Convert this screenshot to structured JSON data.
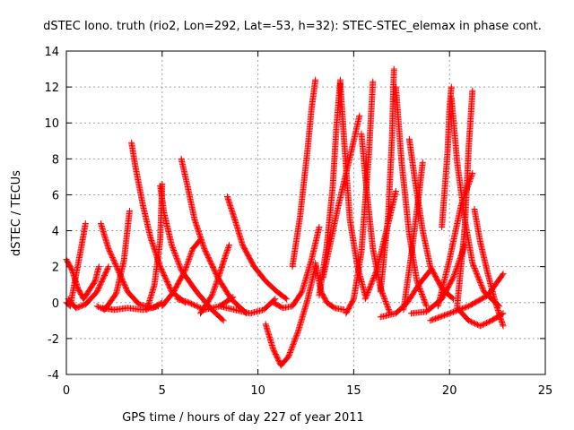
{
  "chart_data": {
    "type": "scatter",
    "title": "dSTEC Iono. truth (rio2, Lon=292, Lat=-53, h=32): STEC-STEC_elemax in phase cont.",
    "xlabel": "GPS time / hours of day 227 of year 2011",
    "ylabel": "dSTEC  / TECUs",
    "xlim": [
      0,
      25
    ],
    "ylim": [
      -4,
      14
    ],
    "x_ticks": [
      0,
      5,
      10,
      15,
      20,
      25
    ],
    "y_ticks": [
      -4,
      -2,
      0,
      2,
      4,
      6,
      8,
      10,
      12,
      14
    ],
    "grid": true,
    "legend": "none",
    "marker": "plus",
    "color": "#ff0000",
    "series": [
      {
        "x": [
          0.0,
          0.3,
          0.6,
          0.9,
          1.5,
          1.7
        ],
        "y": [
          2.4,
          1.8,
          0.8,
          0.2,
          1.2,
          2.0
        ]
      },
      {
        "x": [
          0.0,
          0.2,
          0.5,
          0.8,
          1.0
        ],
        "y": [
          0.0,
          -0.2,
          1.5,
          3.2,
          4.4
        ]
      },
      {
        "x": [
          0.1,
          0.5,
          1.0,
          1.6,
          2.2
        ],
        "y": [
          0.2,
          -0.3,
          -0.1,
          0.6,
          2.0
        ]
      },
      {
        "x": [
          1.8,
          2.2,
          2.7,
          3.2,
          3.8,
          4.5,
          5.0
        ],
        "y": [
          4.4,
          3.0,
          1.8,
          0.6,
          -0.1,
          -0.3,
          0.0
        ]
      },
      {
        "x": [
          1.6,
          2.0,
          2.6,
          3.0,
          3.3
        ],
        "y": [
          -0.2,
          -0.4,
          0.5,
          2.3,
          5.1
        ]
      },
      {
        "x": [
          3.4,
          3.6,
          4.0,
          4.4,
          4.9,
          5.5,
          6.2
        ],
        "y": [
          8.9,
          7.6,
          5.4,
          3.6,
          2.0,
          0.6,
          0.0
        ]
      },
      {
        "x": [
          1.9,
          2.5,
          3.2,
          4.0,
          4.8
        ],
        "y": [
          -0.3,
          -0.4,
          -0.3,
          -0.4,
          -0.2
        ]
      },
      {
        "x": [
          4.2,
          4.6,
          4.9,
          5.0
        ],
        "y": [
          -0.4,
          1.0,
          3.5,
          6.6
        ]
      },
      {
        "x": [
          4.9,
          5.1,
          5.5,
          6.0,
          6.8,
          7.6,
          8.2
        ],
        "y": [
          6.5,
          5.0,
          3.2,
          1.8,
          0.6,
          -0.4,
          -1.0
        ]
      },
      {
        "x": [
          5.0,
          5.6,
          6.2,
          6.6,
          7.0
        ],
        "y": [
          -0.2,
          0.6,
          1.8,
          3.0,
          3.5
        ]
      },
      {
        "x": [
          6.0,
          6.3,
          6.7,
          7.2,
          7.9,
          8.6,
          9.4
        ],
        "y": [
          8.0,
          6.6,
          4.6,
          3.0,
          1.4,
          0.2,
          -0.6
        ]
      },
      {
        "x": [
          5.8,
          6.4,
          7.2,
          8.0,
          8.7
        ],
        "y": [
          0.2,
          0.0,
          -0.4,
          -0.2,
          0.3
        ]
      },
      {
        "x": [
          7.0,
          7.6,
          8.0,
          8.3,
          8.5
        ],
        "y": [
          -0.6,
          0.4,
          1.6,
          2.6,
          3.2
        ]
      },
      {
        "x": [
          8.4,
          8.8,
          9.2,
          9.8,
          10.4,
          11.0,
          11.5
        ],
        "y": [
          5.9,
          4.6,
          3.2,
          2.0,
          1.2,
          0.6,
          0.2
        ]
      },
      {
        "x": [
          8.0,
          8.8,
          9.6,
          10.3,
          10.9
        ],
        "y": [
          -0.2,
          -0.4,
          -0.6,
          -0.4,
          0.2
        ]
      },
      {
        "x": [
          10.4,
          10.8,
          11.2,
          11.6,
          12.1,
          12.6,
          13.0
        ],
        "y": [
          -1.2,
          -2.6,
          -3.5,
          -3.0,
          -1.6,
          0.2,
          2.0
        ]
      },
      {
        "x": [
          10.8,
          11.3,
          11.8,
          12.3,
          12.8,
          13.2
        ],
        "y": [
          0.0,
          -0.3,
          -0.2,
          0.6,
          2.4,
          4.2
        ]
      },
      {
        "x": [
          11.8,
          12.2,
          12.6,
          12.8,
          13.0
        ],
        "y": [
          2.0,
          4.8,
          8.6,
          10.8,
          12.4
        ]
      },
      {
        "x": [
          13.0,
          13.3,
          13.6,
          14.0,
          14.5
        ],
        "y": [
          2.2,
          0.6,
          0.0,
          -0.3,
          -0.4
        ]
      },
      {
        "x": [
          13.2,
          13.6,
          13.9,
          14.1,
          14.3
        ],
        "y": [
          0.4,
          3.2,
          6.4,
          9.8,
          12.4
        ]
      },
      {
        "x": [
          14.3,
          14.5,
          14.8,
          15.2,
          15.6
        ],
        "y": [
          12.2,
          9.0,
          4.6,
          2.0,
          0.4
        ]
      },
      {
        "x": [
          13.4,
          13.8,
          14.2,
          14.6,
          15.0,
          15.3
        ],
        "y": [
          1.4,
          3.4,
          5.4,
          7.2,
          9.0,
          10.4
        ]
      },
      {
        "x": [
          14.6,
          15.0,
          15.4,
          15.6,
          15.8,
          16.0
        ],
        "y": [
          -0.6,
          0.2,
          2.8,
          5.6,
          8.4,
          12.3
        ]
      },
      {
        "x": [
          15.4,
          15.7,
          16.0,
          16.4,
          16.9
        ],
        "y": [
          9.4,
          6.0,
          3.0,
          0.8,
          -0.6
        ]
      },
      {
        "x": [
          15.6,
          16.2,
          16.8,
          17.2
        ],
        "y": [
          0.2,
          1.8,
          4.4,
          6.2
        ]
      },
      {
        "x": [
          16.4,
          16.8,
          17.0,
          17.1
        ],
        "y": [
          0.6,
          4.8,
          9.2,
          13.0
        ]
      },
      {
        "x": [
          17.2,
          17.5,
          17.9,
          18.3,
          18.8
        ],
        "y": [
          12.0,
          7.8,
          3.8,
          1.2,
          -0.2
        ]
      },
      {
        "x": [
          16.4,
          17.2,
          17.8,
          18.4,
          19.0
        ],
        "y": [
          -0.8,
          -0.6,
          0.0,
          1.0,
          1.8
        ]
      },
      {
        "x": [
          17.9,
          18.2,
          18.6,
          19.0,
          19.6,
          20.2
        ],
        "y": [
          9.1,
          6.8,
          4.0,
          2.0,
          0.8,
          0.2
        ]
      },
      {
        "x": [
          17.6,
          18.0,
          18.4,
          18.6
        ],
        "y": [
          -0.4,
          2.6,
          6.0,
          7.8
        ]
      },
      {
        "x": [
          18.0,
          18.8,
          19.6,
          20.2,
          20.8
        ],
        "y": [
          -0.6,
          -0.5,
          0.2,
          1.4,
          3.2
        ]
      },
      {
        "x": [
          19.6,
          19.9,
          20.0,
          20.1
        ],
        "y": [
          4.2,
          8.4,
          10.8,
          12.0
        ]
      },
      {
        "x": [
          20.1,
          20.4,
          20.8,
          21.2,
          21.8,
          22.6
        ],
        "y": [
          11.4,
          7.8,
          4.6,
          2.2,
          0.6,
          -0.2
        ]
      },
      {
        "x": [
          19.4,
          20.0,
          20.6,
          21.2
        ],
        "y": [
          -0.2,
          2.4,
          5.4,
          7.2
        ]
      },
      {
        "x": [
          20.4,
          20.8,
          21.0,
          21.2
        ],
        "y": [
          -0.2,
          4.2,
          8.6,
          11.8
        ]
      },
      {
        "x": [
          21.3,
          21.6,
          22.0,
          22.4,
          22.8
        ],
        "y": [
          5.2,
          3.4,
          1.6,
          0.0,
          -1.3
        ]
      },
      {
        "x": [
          20.4,
          21.0,
          21.6,
          22.2,
          22.8
        ],
        "y": [
          -0.3,
          -1.0,
          -1.3,
          -1.0,
          -0.6
        ]
      },
      {
        "x": [
          19.0,
          20.0,
          21.0,
          22.0,
          22.8
        ],
        "y": [
          -1.0,
          -0.6,
          -0.2,
          0.4,
          1.6
        ]
      }
    ]
  }
}
